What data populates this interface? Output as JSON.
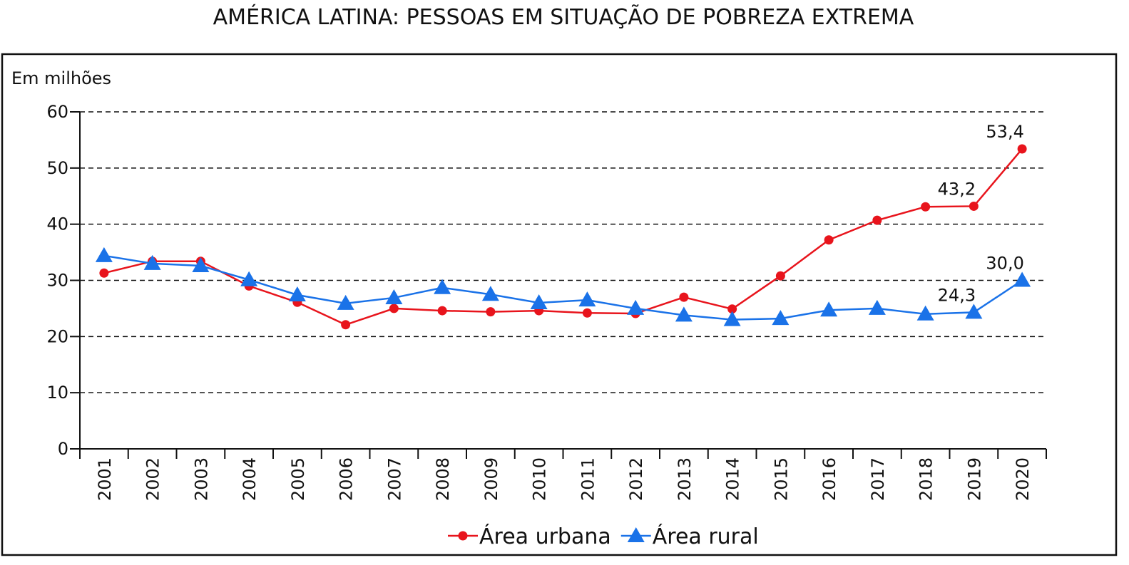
{
  "chart_data": {
    "type": "line",
    "title": "AMÉRICA LATINA: PESSOAS EM SITUAÇÃO DE POBREZA EXTREMA",
    "y_label": "Em milhões",
    "categories": [
      "2001",
      "2002",
      "2003",
      "2004",
      "2005",
      "2006",
      "2007",
      "2008",
      "2009",
      "2010",
      "2011",
      "2012",
      "2013",
      "2014",
      "2015",
      "2016",
      "2017",
      "2018",
      "2019",
      "2020"
    ],
    "series": [
      {
        "name": "Área urbana",
        "color": "#e8141c",
        "marker": "circle",
        "values": [
          31.3,
          33.4,
          33.4,
          29.0,
          26.1,
          22.1,
          25.0,
          24.6,
          24.4,
          24.6,
          24.2,
          24.1,
          27.0,
          24.9,
          30.8,
          37.2,
          40.7,
          43.1,
          43.2,
          53.4
        ],
        "value_labels": [
          null,
          null,
          null,
          null,
          null,
          null,
          null,
          null,
          null,
          null,
          null,
          null,
          null,
          null,
          null,
          null,
          null,
          null,
          "43,2",
          "53,4"
        ]
      },
      {
        "name": "Área rural",
        "color": "#1a72e8",
        "marker": "triangle",
        "values": [
          34.4,
          33.0,
          32.6,
          30.1,
          27.4,
          25.9,
          26.9,
          28.7,
          27.5,
          26.0,
          26.5,
          25.0,
          23.8,
          23.0,
          23.2,
          24.7,
          25.0,
          24.0,
          24.3,
          30.0
        ],
        "value_labels": [
          null,
          null,
          null,
          null,
          null,
          null,
          null,
          null,
          null,
          null,
          null,
          null,
          null,
          null,
          null,
          null,
          null,
          null,
          "24,3",
          "30,0"
        ]
      }
    ],
    "ylim": [
      0,
      60
    ],
    "yticks": [
      0,
      10,
      20,
      30,
      40,
      50,
      60
    ],
    "grid": true,
    "legend": "bottom"
  }
}
